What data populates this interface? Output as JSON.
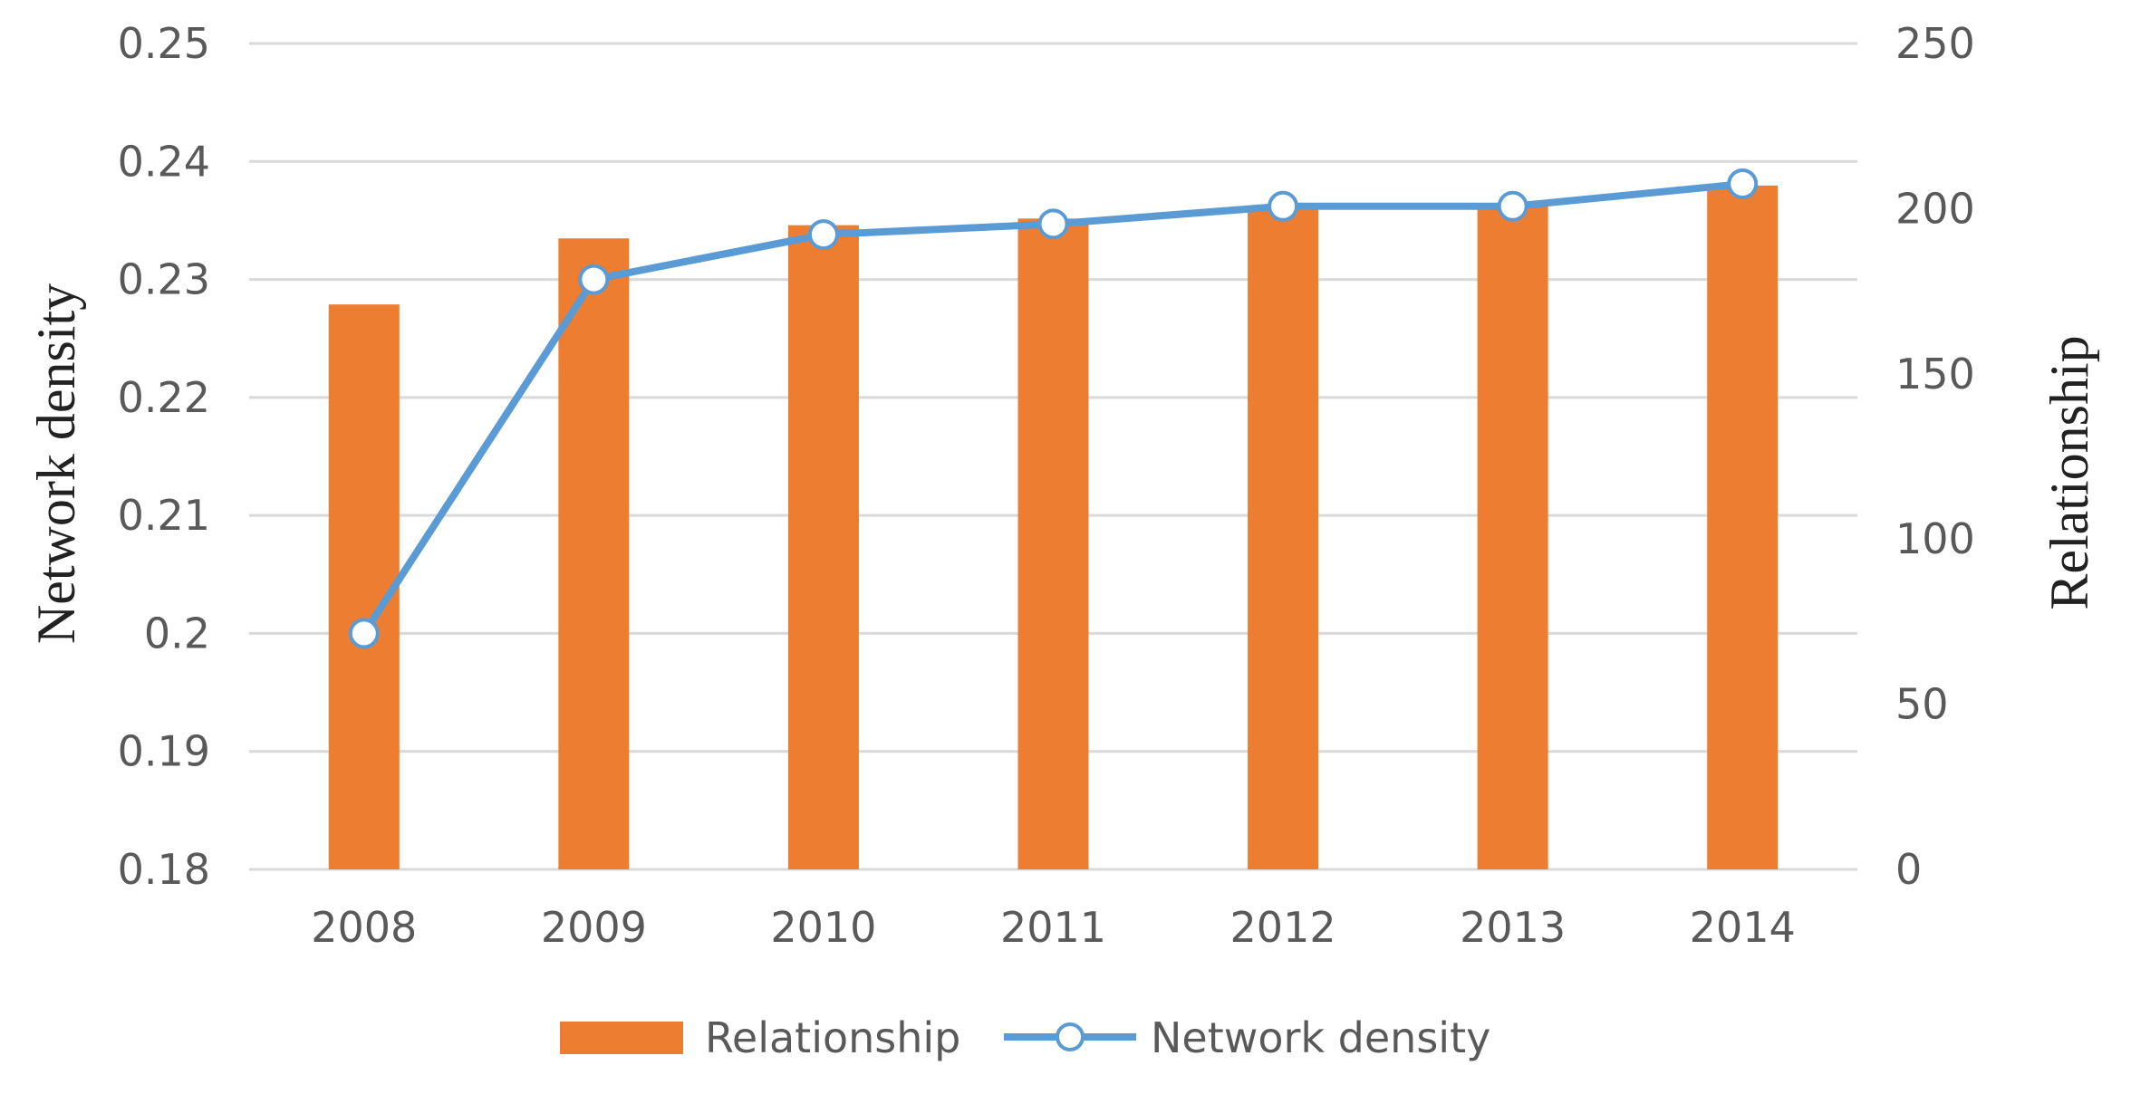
{
  "chart_data": {
    "type": "bar",
    "categories": [
      "2008",
      "2009",
      "2010",
      "2011",
      "2012",
      "2013",
      "2014"
    ],
    "series": [
      {
        "name": "Relationship",
        "kind": "bar",
        "axis": "right",
        "color": "#ED7D31",
        "values": [
          171,
          191,
          195,
          197,
          200,
          201,
          207
        ]
      },
      {
        "name": "Network density",
        "kind": "line",
        "axis": "left",
        "color": "#5B9BD5",
        "marker": "open-circle",
        "values": [
          0.2,
          0.23,
          0.2338,
          0.2347,
          0.2362,
          0.2362,
          0.2381
        ]
      }
    ],
    "y_left": {
      "label": "Network density",
      "range": [
        0.18,
        0.25
      ],
      "ticks": [
        "0.18",
        "0.19",
        "0.2",
        "0.21",
        "0.22",
        "0.23",
        "0.24",
        "0.25"
      ]
    },
    "y_right": {
      "label": "Relationship",
      "range": [
        0,
        250
      ],
      "ticks": [
        "0",
        "50",
        "100",
        "150",
        "200",
        "250"
      ]
    },
    "grid": true,
    "legend": {
      "placement": "bottom",
      "items": [
        "Relationship",
        "Network density"
      ]
    }
  }
}
